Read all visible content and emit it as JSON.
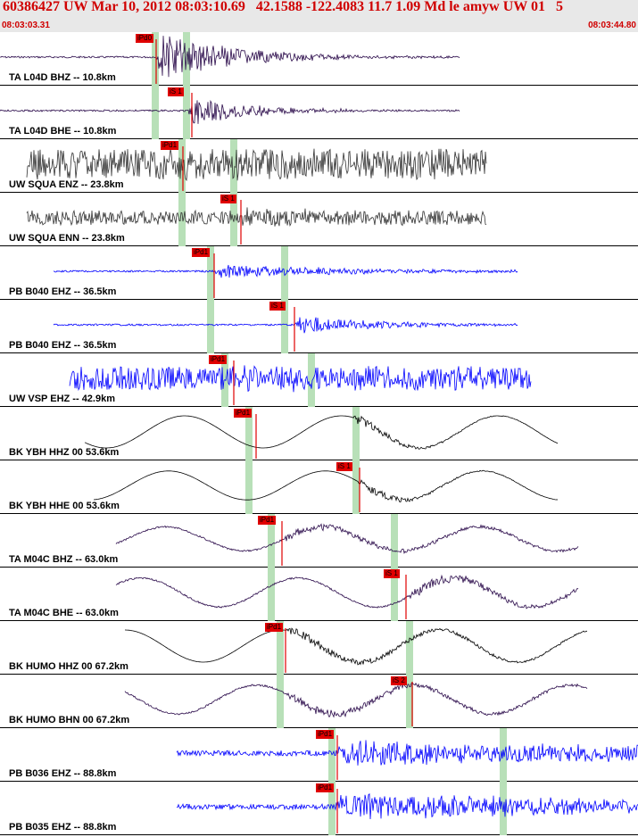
{
  "header": {
    "title": "60386427 UW Mar 10, 2012 08:03:10.69   42.1588 -122.4083 11.7 1.09 Md le amyw UW 01   5",
    "start_time": "08:03:03.31",
    "end_time": "08:03:44.80"
  },
  "colors": {
    "header_bg": "#e8e8e8",
    "header_text": "#d00000",
    "pick": "#e00000",
    "window": "#b8e0b8",
    "wave_black": "#000000",
    "wave_purple": "#2a0a4a",
    "wave_gray": "#333333",
    "wave_blue": "#0000ff"
  },
  "traces": [
    {
      "label": "TA L04D BHZ -- 10.8km",
      "color": "#2a0a4a",
      "kind": "purple",
      "start": 0,
      "end": 515,
      "onset": 175,
      "noise": 1,
      "event": 30,
      "decay": 80,
      "lf": 0,
      "picks": [
        {
          "label": "iPd0"
        }
      ]
    },
    {
      "label": "TA L04D BHE -- 10.8km",
      "color": "#2a0a4a",
      "kind": "purple",
      "start": 0,
      "end": 515,
      "onset": 210,
      "noise": 1,
      "event": 18,
      "decay": 70,
      "lf": 0,
      "picks": [
        {
          "label": "iS 1"
        }
      ]
    },
    {
      "label": "UW SQUA ENZ -- 23.8km",
      "color": "#333333",
      "kind": "gray",
      "start": 30,
      "end": 545,
      "onset": 205,
      "noise": 17,
      "event": 4,
      "decay": 200,
      "lf": 0,
      "picks": [
        {
          "label": "iPd1"
        }
      ]
    },
    {
      "label": "UW SQUA ENN -- 23.8km",
      "color": "#333333",
      "kind": "gray",
      "start": 30,
      "end": 545,
      "onset": 265,
      "noise": 8,
      "event": 8,
      "decay": 80,
      "lf": 0,
      "picks": [
        {
          "label": "iS 1"
        }
      ]
    },
    {
      "label": "PB B040 EHZ -- 36.5km",
      "color": "#0000ff",
      "kind": "blue",
      "start": 60,
      "end": 580,
      "onset": 240,
      "noise": 1,
      "event": 8,
      "decay": 150,
      "lf": 0,
      "picks": [
        {
          "label": "iPd1"
        }
      ]
    },
    {
      "label": "PB B040 EHZ -- 36.5km",
      "color": "#0000ff",
      "kind": "blue",
      "start": 60,
      "end": 580,
      "onset": 330,
      "noise": 1,
      "event": 10,
      "decay": 100,
      "lf": 0,
      "picks": [
        {
          "label": "iS 1"
        }
      ]
    },
    {
      "label": "UW VSP EHZ -- 42.9km",
      "color": "#0000ff",
      "kind": "blue",
      "start": 78,
      "end": 595,
      "onset": 260,
      "noise": 13,
      "event": 5,
      "decay": 150,
      "lf": 0,
      "picks": [
        {
          "label": "iPd1"
        }
      ]
    },
    {
      "label": "BK YBH HHZ 00 53.6km",
      "color": "#000000",
      "kind": "black",
      "start": 95,
      "end": 625,
      "onset": 395,
      "noise": 0,
      "event": 6,
      "decay": 60,
      "lf": 20,
      "picks": [
        {
          "label": "iPd1"
        }
      ]
    },
    {
      "label": "BK YBH HHE 00 53.6km",
      "color": "#000000",
      "kind": "black",
      "start": 105,
      "end": 625,
      "onset": 400,
      "noise": 0,
      "event": 6,
      "decay": 60,
      "lf": 18,
      "picks": [
        {
          "label": "iS 1"
        }
      ]
    },
    {
      "label": "TA M04C BHZ -- 63.0km",
      "color": "#2a0a4a",
      "kind": "purple",
      "start": 130,
      "end": 648,
      "onset": 315,
      "noise": 1,
      "event": 4,
      "decay": 200,
      "lf": 15,
      "picks": [
        {
          "label": "iPd1"
        }
      ]
    },
    {
      "label": "TA M04C BHE -- 63.0km",
      "color": "#2a0a4a",
      "kind": "purple",
      "start": 130,
      "end": 648,
      "onset": 455,
      "noise": 1,
      "event": 6,
      "decay": 150,
      "lf": 18,
      "picks": [
        {
          "label": "iS 1"
        }
      ]
    },
    {
      "label": "BK HUMO HHZ 00 67.2km",
      "color": "#000000",
      "kind": "black",
      "start": 140,
      "end": 658,
      "onset": 320,
      "noise": 0,
      "event": 5,
      "decay": 200,
      "lf": 20,
      "picks": [
        {
          "label": "iPd1"
        }
      ]
    },
    {
      "label": "BK HUMO BHN 00 67.2km",
      "color": "#2a0a4a",
      "kind": "purple",
      "start": 140,
      "end": 658,
      "onset": 320,
      "noise": 1,
      "event": 5,
      "decay": 200,
      "lf": 18,
      "picks": [
        {
          "label": "iS 2"
        }
      ]
    },
    {
      "label": "PB B036 EHZ -- 88.8km",
      "color": "#0000ff",
      "kind": "blue",
      "start": 198,
      "end": 715,
      "onset": 375,
      "noise": 3,
      "event": 14,
      "decay": 500,
      "lf": 0,
      "picks": [
        {
          "label": "iPd1"
        }
      ]
    },
    {
      "label": "PB B035 EHZ -- 88.8km",
      "color": "#0000ff",
      "kind": "blue",
      "start": 198,
      "end": 715,
      "onset": 375,
      "noise": 3,
      "event": 14,
      "decay": 500,
      "lf": 0,
      "picks": [
        {
          "label": "iPd1"
        }
      ]
    }
  ]
}
